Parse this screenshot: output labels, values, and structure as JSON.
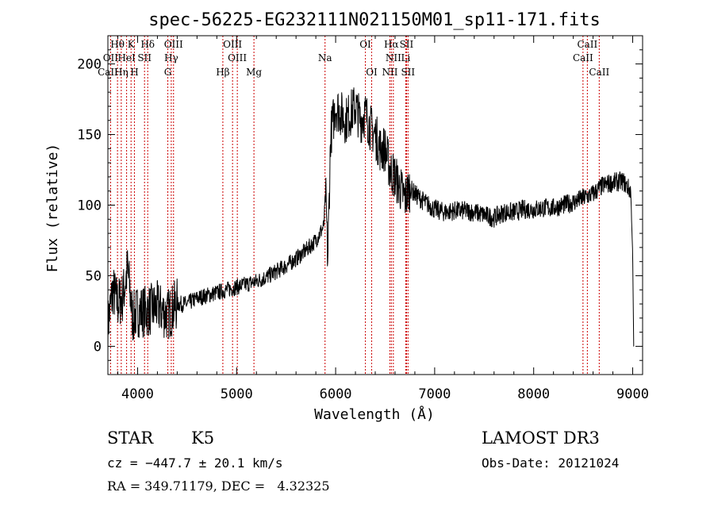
{
  "chart_data": {
    "type": "line",
    "title": "spec-56225-EG232111N021150M01_sp11-171.fits",
    "xlabel": "Wavelength (Å)",
    "ylabel": "Flux (relative)",
    "xlim": [
      3700,
      9100
    ],
    "ylim": [
      -20,
      220
    ],
    "xticks": [
      4000,
      5000,
      6000,
      7000,
      8000,
      9000
    ],
    "yticks": [
      0,
      50,
      100,
      150,
      200
    ],
    "series": [
      {
        "x": [
          3700,
          3750,
          3800,
          3850,
          3900,
          3950,
          4000,
          4100,
          4200,
          4300,
          4400,
          4500,
          4600,
          4700,
          4800,
          4900,
          5000,
          5100,
          5200,
          5300,
          5400,
          5500,
          5600,
          5700,
          5800,
          5880,
          5900,
          5920,
          5950,
          6000,
          6050,
          6100,
          6150,
          6200,
          6250,
          6300,
          6350,
          6400,
          6450,
          6500,
          6550,
          6600,
          6650,
          6700,
          6750,
          6800,
          6900,
          7000,
          7100,
          7200,
          7300,
          7400,
          7500,
          7600,
          7700,
          7800,
          7900,
          8000,
          8100,
          8200,
          8300,
          8400,
          8500,
          8600,
          8700,
          8800,
          8900,
          8980,
          9000,
          9010
        ],
        "y": [
          15,
          40,
          30,
          35,
          55,
          20,
          25,
          25,
          28,
          22,
          30,
          30,
          34,
          36,
          38,
          40,
          42,
          44,
          46,
          49,
          53,
          57,
          62,
          68,
          75,
          85,
          110,
          60,
          150,
          170,
          165,
          160,
          165,
          170,
          160,
          165,
          155,
          150,
          140,
          140,
          125,
          120,
          112,
          105,
          112,
          108,
          102,
          97,
          95,
          96,
          96,
          95,
          93,
          91,
          95,
          95,
          97,
          97,
          98,
          98,
          100,
          102,
          105,
          108,
          114,
          116,
          117,
          110,
          65,
          0
        ]
      }
    ],
    "spectral_lines": [
      {
        "name": "Hθ",
        "x": 3797,
        "row": 0
      },
      {
        "name": "K",
        "x": 3934,
        "row": 0
      },
      {
        "name": "Hδ",
        "x": 4102,
        "row": 0
      },
      {
        "name": "OIII",
        "x": 4363,
        "row": 0
      },
      {
        "name": "OIII",
        "x": 4959,
        "row": 0
      },
      {
        "name": "OI",
        "x": 6300,
        "row": 0
      },
      {
        "name": "Hα",
        "x": 6563,
        "row": 0
      },
      {
        "name": "SII",
        "x": 6716,
        "row": 0
      },
      {
        "name": "CaII",
        "x": 8542,
        "row": 0
      },
      {
        "name": "OII",
        "x": 3727,
        "row": 1
      },
      {
        "name": "HeI",
        "x": 3889,
        "row": 1
      },
      {
        "name": "SII",
        "x": 4070,
        "row": 1
      },
      {
        "name": "Hγ",
        "x": 4340,
        "row": 1
      },
      {
        "name": "OIII",
        "x": 5007,
        "row": 1
      },
      {
        "name": "Na",
        "x": 5893,
        "row": 1
      },
      {
        "name": "NII",
        "x": 6583,
        "row": 1
      },
      {
        "name": "Li",
        "x": 6708,
        "row": 1
      },
      {
        "name": "CaII",
        "x": 8498,
        "row": 1
      },
      {
        "name": "CaII",
        "x": 3700,
        "row": 2
      },
      {
        "name": "Hη",
        "x": 3835,
        "row": 2
      },
      {
        "name": "H",
        "x": 3968,
        "row": 2
      },
      {
        "name": "G",
        "x": 4305,
        "row": 2
      },
      {
        "name": "Hβ",
        "x": 4861,
        "row": 2
      },
      {
        "name": "Mg",
        "x": 5175,
        "row": 2
      },
      {
        "name": "OI",
        "x": 6364,
        "row": 2
      },
      {
        "name": "NII",
        "x": 6548,
        "row": 2
      },
      {
        "name": "SII",
        "x": 6731,
        "row": 2
      },
      {
        "name": "CaII",
        "x": 8662,
        "row": 2
      }
    ],
    "line_marker_color": "#cc0000",
    "grid": false
  },
  "info": {
    "object_class": "STAR",
    "subclass": "K5",
    "survey": "LAMOST DR3",
    "cz": "cz = −447.7 ± 20.1 km/s",
    "obs_date": "Obs-Date: 20121024",
    "coords": "RA = 349.71179, DEC =   4.32325"
  }
}
